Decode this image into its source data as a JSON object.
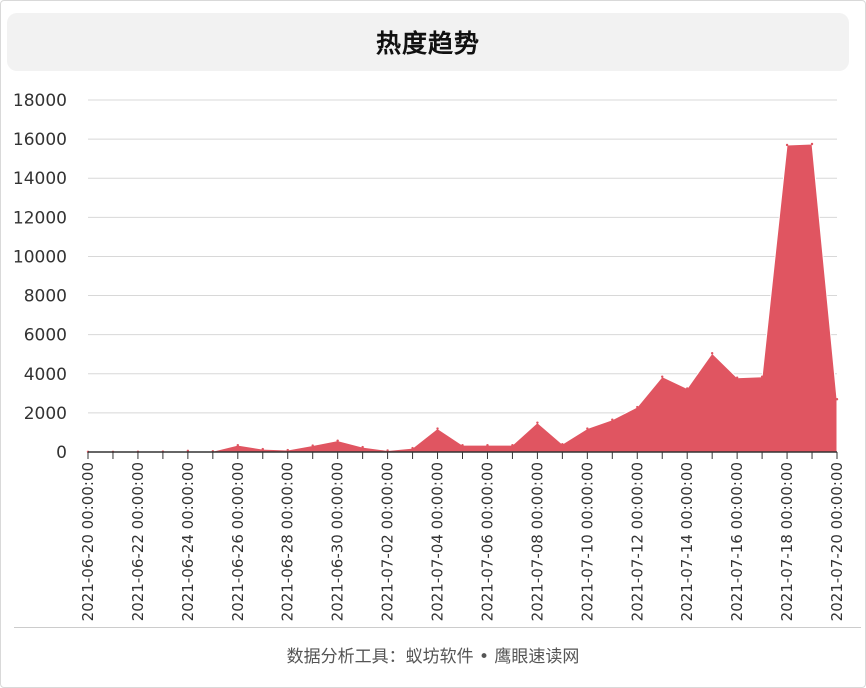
{
  "header": {
    "title": "热度趋势"
  },
  "footer": {
    "text": "数据分析工具：蚁坊软件 • 鹰眼速读网"
  },
  "colors": {
    "area": "#e05561",
    "grid": "#d8d8d8",
    "axis": "#333333"
  },
  "chart_data": {
    "type": "area",
    "title": "热度趋势",
    "xlabel": "",
    "ylabel": "",
    "ylim": [
      0,
      18000
    ],
    "yticks": [
      0,
      2000,
      4000,
      6000,
      8000,
      10000,
      12000,
      14000,
      16000,
      18000
    ],
    "grid": true,
    "legend": "none",
    "x_tick_labels": [
      "2021-06-20 00:00:00",
      "2021-06-22 00:00:00",
      "2021-06-24 00:00:00",
      "2021-06-26 00:00:00",
      "2021-06-28 00:00:00",
      "2021-06-30 00:00:00",
      "2021-07-02 00:00:00",
      "2021-07-04 00:00:00",
      "2021-07-06 00:00:00",
      "2021-07-08 00:00:00",
      "2021-07-10 00:00:00",
      "2021-07-12 00:00:00",
      "2021-07-14 00:00:00",
      "2021-07-16 00:00:00",
      "2021-07-18 00:00:00",
      "2021-07-20 00:00:00"
    ],
    "series": [
      {
        "x": [
          "2021-06-20 00:00",
          "2021-06-21 00:00",
          "2021-06-22 00:00",
          "2021-06-23 00:00",
          "2021-06-24 00:00",
          "2021-06-25 00:00",
          "2021-06-26 00:00",
          "2021-06-27 00:00",
          "2021-06-28 00:00",
          "2021-06-29 00:00",
          "2021-06-30 00:00",
          "2021-07-01 00:00",
          "2021-07-02 00:00",
          "2021-07-03 00:00",
          "2021-07-04 00:00",
          "2021-07-05 00:00",
          "2021-07-06 00:00",
          "2021-07-07 00:00",
          "2021-07-08 00:00",
          "2021-07-09 00:00",
          "2021-07-10 00:00",
          "2021-07-11 00:00",
          "2021-07-12 00:00",
          "2021-07-13 00:00",
          "2021-07-14 00:00",
          "2021-07-15 00:00",
          "2021-07-16 00:00",
          "2021-07-17 00:00",
          "2021-07-18 00:00",
          "2021-07-19 00:00",
          "2021-07-20 00:00"
        ],
        "values": [
          10,
          10,
          15,
          20,
          60,
          40,
          350,
          150,
          100,
          330,
          580,
          250,
          80,
          200,
          1200,
          350,
          350,
          350,
          1500,
          400,
          1200,
          1650,
          2300,
          3850,
          3250,
          5050,
          3800,
          3850,
          15700,
          15750,
          2700
        ]
      }
    ]
  }
}
